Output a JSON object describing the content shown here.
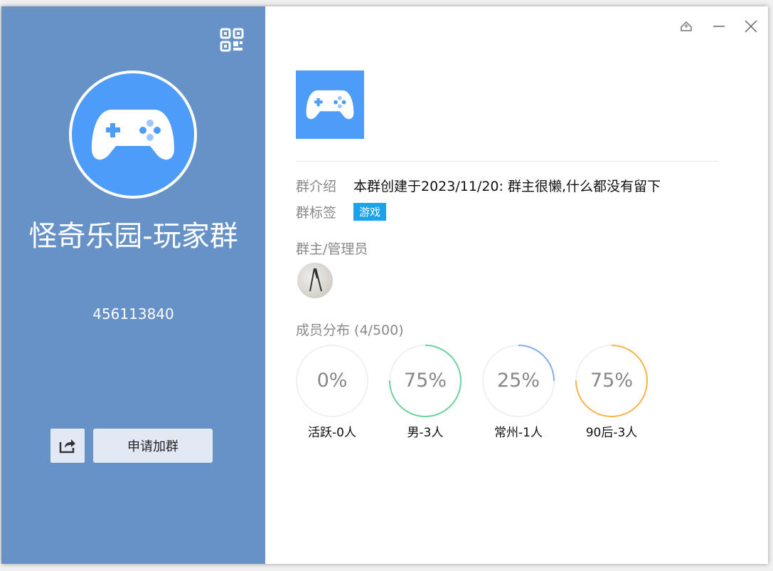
{
  "group": {
    "name": "怪奇乐园-玩家群",
    "id": "456113840",
    "avatar_icon": "gamepad-icon",
    "avatar_color": "#4d9cfa"
  },
  "left_panel": {
    "bg": "#6692c8",
    "join_label": "申请加群",
    "share_icon": "share-icon",
    "qr_icon": "qrcode-icon"
  },
  "window_controls": {
    "pin_icon": "pin-icon",
    "minimize_icon": "minimize-icon",
    "close_icon": "close-icon"
  },
  "info": {
    "intro_label": "群介绍",
    "intro": "本群创建于2023/11/20:  群主很懒,什么都没有留下",
    "tags_label": "群标签",
    "tags": [
      "游戏"
    ],
    "admins_label": "群主/管理员",
    "members_label": "成员分布 (4/500)"
  },
  "stats": [
    {
      "percent": "0%",
      "value": 0,
      "label": "活跃-0人",
      "color": "#cccccc"
    },
    {
      "percent": "75%",
      "value": 0.75,
      "label": "男-3人",
      "color": "#6bd39e"
    },
    {
      "percent": "25%",
      "value": 0.25,
      "label": "常州-1人",
      "color": "#86aef0"
    },
    {
      "percent": "75%",
      "value": 0.75,
      "label": "90后-3人",
      "color": "#f8b548"
    }
  ]
}
